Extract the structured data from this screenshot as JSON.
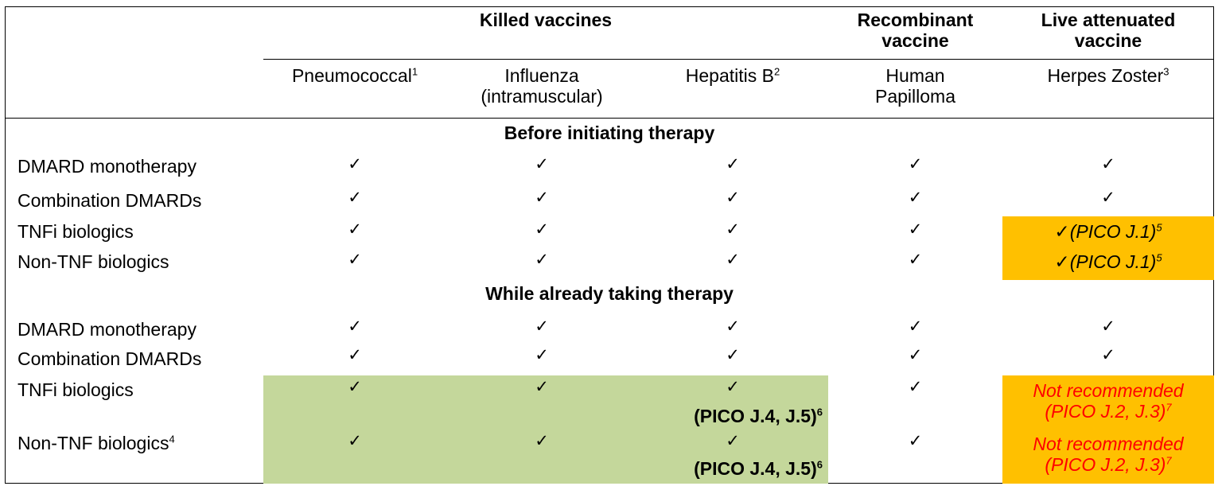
{
  "header": {
    "group_killed": "Killed vaccines",
    "group_recombinant": [
      "Recombinant",
      "vaccine"
    ],
    "group_live": [
      "Live attenuated",
      "vaccine"
    ],
    "columns": [
      {
        "label": "Pneumococcal",
        "sup": "1"
      },
      {
        "label": "Influenza",
        "label2": "(intramuscular)"
      },
      {
        "label": "Hepatitis B",
        "sup": "2"
      },
      {
        "label": "Human",
        "label2": "Papilloma"
      },
      {
        "label": "Herpes Zoster",
        "sup": "3"
      }
    ]
  },
  "sections": [
    {
      "title": "Before initiating therapy",
      "rows": [
        {
          "label": "DMARD monotherapy",
          "cells": [
            "✓",
            "✓",
            "✓",
            "✓",
            "✓"
          ]
        },
        {
          "label": "Combination DMARDs",
          "cells": [
            "✓",
            "✓",
            "✓",
            "✓",
            "✓"
          ]
        },
        {
          "label": "TNFi biologics",
          "cells": [
            "✓",
            "✓",
            "✓",
            "✓"
          ],
          "zoster": {
            "check": "✓",
            "text": "(PICO J.1)",
            "sup": "5"
          }
        },
        {
          "label": "Non-TNF biologics",
          "cells": [
            "✓",
            "✓",
            "✓",
            "✓"
          ],
          "zoster": {
            "check": "✓",
            "text": "(PICO J.1)",
            "sup": "5"
          }
        }
      ]
    },
    {
      "title": "While already taking therapy",
      "rows": [
        {
          "label": "DMARD monotherapy",
          "cells": [
            "✓",
            "✓",
            "✓",
            "✓",
            "✓"
          ]
        },
        {
          "label": "Combination DMARDs",
          "cells": [
            "✓",
            "✓",
            "✓",
            "✓",
            "✓"
          ]
        },
        {
          "label": "TNFi biologics",
          "cells": [
            "✓",
            "✓",
            "✓",
            "✓"
          ],
          "hepb_note": "(PICO J.4, J.5)",
          "hepb_sup": "6",
          "zoster": {
            "line1": "Not recommended",
            "line2": "(PICO J.2, J.3)",
            "sup": "7"
          }
        },
        {
          "label": "Non-TNF biologics",
          "label_sup": "4",
          "cells": [
            "✓",
            "✓",
            "✓",
            "✓"
          ],
          "hepb_note": "(PICO J.4, J.5)",
          "hepb_sup": "6",
          "zoster": {
            "line1": "Not recommended",
            "line2": "(PICO J.2, J.3)",
            "sup": "7"
          }
        }
      ]
    }
  ],
  "colors": {
    "green_highlight": "#c4d79b",
    "orange_highlight": "#ffc000",
    "warning_text": "#ff0000"
  }
}
